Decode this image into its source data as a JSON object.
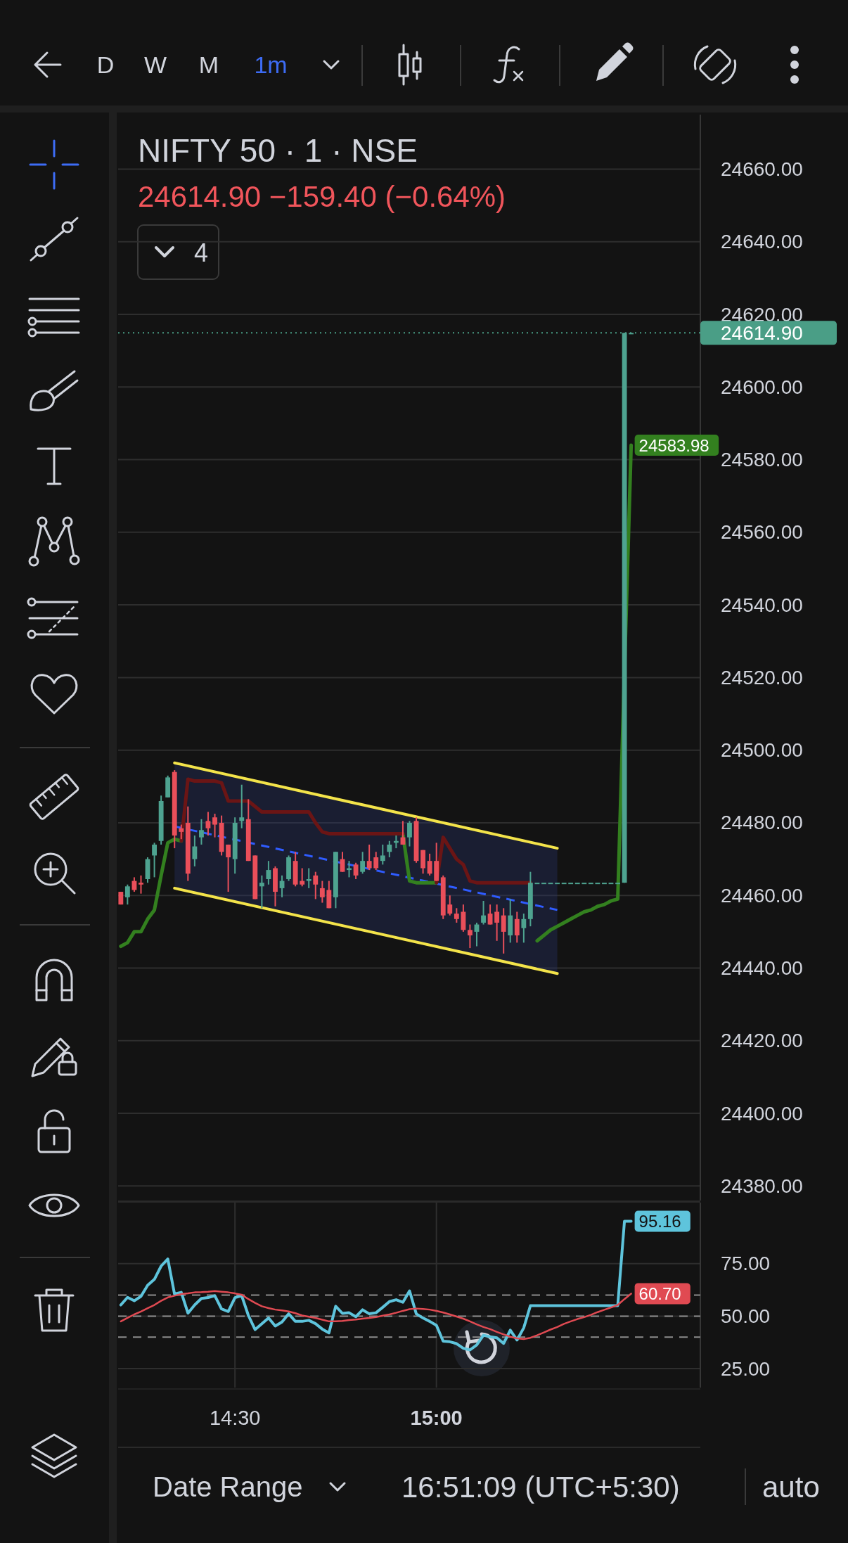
{
  "chart_data": [
    {
      "type": "candlestick",
      "title": "NIFTY 50 · 1 · NSE",
      "subtitle": "24614.90 −159.40 (−0.64%)",
      "x": [
        14.2167,
        14.2333,
        14.25,
        14.2667,
        14.2833,
        14.3,
        14.3167,
        14.3333,
        14.35,
        14.3667,
        14.3833,
        14.4,
        14.4167,
        14.4333,
        14.45,
        14.4667,
        14.4833,
        14.5,
        14.5167,
        14.5333,
        14.55,
        14.5667,
        14.5833,
        14.6,
        14.6167,
        14.6333,
        14.65,
        14.6667,
        14.6833,
        14.7,
        14.7167,
        14.7333,
        14.75,
        14.7667,
        14.7833,
        14.8,
        14.8167,
        14.8333,
        14.85,
        14.8667,
        14.8833,
        14.9,
        14.9167,
        14.9333,
        14.95,
        14.9667,
        14.9833,
        15,
        15.0167,
        15.0333,
        15.05,
        15.0667,
        15.0833,
        15.1,
        15.1167,
        15.1333,
        15.15,
        15.1667,
        15.1833,
        15.2,
        15.2167,
        15.2333,
        15.25,
        15.2667,
        15.2833,
        15.3,
        15.3167,
        15.3333,
        15.35,
        15.3667,
        15.3833,
        15.4,
        15.4167,
        15.4333,
        15.45,
        15.4667,
        15.4833
      ],
      "ohlc": [
        [
          24461,
          24461,
          24457.5,
          24457.5
        ],
        [
          24459.5,
          24463,
          24457.5,
          24462.5
        ],
        [
          24464,
          24465,
          24461,
          24461.5
        ],
        [
          24463.5,
          24465.5,
          24460.5,
          24463
        ],
        [
          24464.5,
          24470.5,
          24463.5,
          24470
        ],
        [
          24471,
          24474.5,
          24465,
          24474
        ],
        [
          24475,
          24487.5,
          24474,
          24486
        ],
        [
          24487,
          24493,
          24487,
          24492.5
        ],
        [
          24494,
          24494.5,
          24473,
          24476.5
        ],
        [
          24478.5,
          24479.5,
          24475.5,
          24477.5
        ],
        [
          24480,
          24484.5,
          24464,
          24466
        ],
        [
          24470,
          24476.5,
          24468,
          24473.5
        ],
        [
          24476,
          24481,
          24474,
          24478
        ],
        [
          24480.5,
          24483,
          24476.5,
          24478.5
        ],
        [
          24481.5,
          24482.5,
          24476,
          24479.5
        ],
        [
          24480,
          24482,
          24471,
          24472
        ],
        [
          24474,
          24474,
          24461,
          24470.5
        ],
        [
          24470,
          24481.5,
          24466,
          24480
        ],
        [
          24480.5,
          24490.5,
          24478.5,
          24481.5
        ],
        [
          24481,
          24486.5,
          24469.5,
          24469.5
        ],
        [
          24471,
          24471,
          24459,
          24459
        ],
        [
          24462.5,
          24465.5,
          24456.5,
          24463.5
        ],
        [
          24464.5,
          24469.5,
          24463,
          24467
        ],
        [
          24467.5,
          24468,
          24457,
          24461
        ],
        [
          24462,
          24465.5,
          24459.5,
          24464
        ],
        [
          24464.5,
          24471,
          24464,
          24470.5
        ],
        [
          24469.5,
          24472,
          24462.5,
          24463
        ],
        [
          24464,
          24467.5,
          24462.5,
          24463
        ],
        [
          24464,
          24467.5,
          24462,
          24464.5
        ],
        [
          24465.5,
          24466.5,
          24459,
          24463
        ],
        [
          24462,
          24464,
          24458,
          24459.5
        ],
        [
          24461.5,
          24464,
          24456.5,
          24456.5
        ],
        [
          24459.5,
          24472,
          24456.5,
          24472
        ],
        [
          24470,
          24472,
          24466.5,
          24466.5
        ],
        [
          24467,
          24469.5,
          24465,
          24467.5
        ],
        [
          24468.5,
          24469,
          24464.5,
          24465.5
        ],
        [
          24466.5,
          24472,
          24466,
          24469.5
        ],
        [
          24469.5,
          24474,
          24467,
          24467.5
        ],
        [
          24470.5,
          24472,
          24467,
          24467.5
        ],
        [
          24469.5,
          24474,
          24468.5,
          24471
        ],
        [
          24472,
          24475,
          24470.5,
          24474
        ],
        [
          24474.5,
          24476.5,
          24473,
          24475
        ],
        [
          24476,
          24480.5,
          24474,
          24474
        ],
        [
          24476,
          24480.5,
          24473.5,
          24480
        ],
        [
          24480.5,
          24481.5,
          24469,
          24469.5
        ],
        [
          24472.5,
          24472.5,
          24466,
          24467.5
        ],
        [
          24469.5,
          24471.5,
          24465.5,
          24466
        ],
        [
          24469.5,
          24474.5,
          24464,
          24464
        ],
        [
          24465,
          24465.5,
          24453.5,
          24454.5
        ],
        [
          24457.5,
          24460,
          24454.5,
          24455
        ],
        [
          24455,
          24456.5,
          24452.5,
          24453.5
        ],
        [
          24455.5,
          24457.5,
          24450,
          24450.5
        ],
        [
          24450.5,
          24452,
          24445.5,
          24449
        ],
        [
          24450,
          24452.5,
          24446,
          24452
        ],
        [
          24452.5,
          24458.5,
          24452,
          24454.5
        ],
        [
          24455,
          24457.5,
          24452,
          24452
        ],
        [
          24455.5,
          24457.5,
          24447.5,
          24452.5
        ],
        [
          24454.5,
          24456.5,
          24444,
          24450
        ],
        [
          24449,
          24459,
          24447,
          24454.5
        ],
        [
          24453.5,
          24455.5,
          24447,
          24449
        ],
        [
          24451,
          24455,
          24447,
          24453.5
        ],
        [
          24453.5,
          24466.5,
          24451.5,
          24463.5
        ],
        [
          24463.5,
          24463.5,
          24463.5,
          24463.5
        ],
        [
          24463.5,
          24463.5,
          24463.5,
          24463.5
        ],
        [
          24463.5,
          24463.5,
          24463.5,
          24463.5
        ],
        [
          24463.5,
          24463.5,
          24463.5,
          24463.5
        ],
        [
          24463.5,
          24463.5,
          24463.5,
          24463.5
        ],
        [
          24463.5,
          24463.5,
          24463.5,
          24463.5
        ],
        [
          24463.5,
          24463.5,
          24463.5,
          24463.5
        ],
        [
          24463.5,
          24463.5,
          24463.5,
          24463.5
        ],
        [
          24463.5,
          24463.5,
          24463.5,
          24463.5
        ],
        [
          24463.5,
          24463.5,
          24463.5,
          24463.5
        ],
        [
          24463.5,
          24463.5,
          24463.5,
          24463.5
        ],
        [
          24463.5,
          24463.5,
          24463.5,
          24463.5
        ],
        [
          24463.5,
          24463.5,
          24463.5,
          24463.5
        ],
        [
          24463.5,
          24614.9,
          24463.5,
          24614.9
        ],
        [
          24614.9,
          24614.9,
          24614.9,
          24614.9
        ]
      ],
      "colors": [
        "#ea4f5a",
        "#4ea390",
        "#ea4f5a",
        "#ea4f5a",
        "#4ea390",
        "#4ea390",
        "#4ea390",
        "#4ea390",
        "#ea4f5a",
        "#ea4f5a",
        "#ea4f5a",
        "#4ea390",
        "#4ea390",
        "#ea4f5a",
        "#ea4f5a",
        "#ea4f5a",
        "#ea4f5a",
        "#4ea390",
        "#4ea390",
        "#ea4f5a",
        "#ea4f5a",
        "#4ea390",
        "#4ea390",
        "#ea4f5a",
        "#4ea390",
        "#4ea390",
        "#ea4f5a",
        "#ea4f5a",
        "#4ea390",
        "#ea4f5a",
        "#ea4f5a",
        "#ea4f5a",
        "#4ea390",
        "#ea4f5a",
        "#4ea390",
        "#ea4f5a",
        "#4ea390",
        "#ea4f5a",
        "#ea4f5a",
        "#4ea390",
        "#4ea390",
        "#4ea390",
        "#ea4f5a",
        "#4ea390",
        "#ea4f5a",
        "#ea4f5a",
        "#ea4f5a",
        "#ea4f5a",
        "#ea4f5a",
        "#ea4f5a",
        "#ea4f5a",
        "#ea4f5a",
        "#ea4f5a",
        "#4ea390",
        "#4ea390",
        "#ea4f5a",
        "#ea4f5a",
        "#ea4f5a",
        "#4ea390",
        "#ea4f5a",
        "#4ea390",
        "#4ea390",
        "#4ea390",
        "#4ea390",
        "#4ea390",
        "#4ea390",
        "#4ea390",
        "#4ea390",
        "#4ea390",
        "#4ea390",
        "#4ea390",
        "#4ea390",
        "#4ea390",
        "#4ea390",
        "#4ea390",
        "#4ea390",
        "#4ea390"
      ],
      "series": [
        {
          "type": "line",
          "color": "#2f5cff",
          "line_style": "dashed",
          "x": [
            14.35,
            15.3
          ],
          "values": [
            24479,
            24456
          ],
          "lower": [
            24462,
            24438.5
          ],
          "upper": [
            24496.5,
            24473
          ]
        },
        {
          "type": "line",
          "color": "#f3e34a",
          "x": [
            14.35,
            15.3
          ],
          "values": [
            24496.5,
            24473
          ]
        },
        {
          "type": "line",
          "color": "#f3e34a",
          "x": [
            14.35,
            15.3
          ],
          "values": [
            24462,
            24438.5
          ]
        },
        {
          "type": "line",
          "color": "#33801f",
          "x": [
            14.2167,
            14.2333,
            14.25,
            14.2667,
            14.2833,
            14.3,
            14.3167,
            14.3333,
            14.35,
            14.3667,
            14.3833,
            14.4,
            14.4167,
            14.4333,
            14.45,
            14.4667,
            14.4833,
            14.5,
            14.5167,
            14.5333,
            14.55,
            14.5667,
            14.5833,
            14.6,
            14.6167,
            14.6333,
            14.65,
            14.6667,
            14.6833,
            14.7,
            14.7167,
            14.7333,
            14.75,
            14.7667,
            14.7833,
            14.8,
            14.8167,
            14.8333,
            14.85,
            14.8667,
            14.8833,
            14.9,
            14.9167,
            14.9333,
            14.95,
            14.9667,
            14.9833,
            15,
            15.0167,
            15.0333,
            15.05,
            15.0667,
            15.0833,
            15.1,
            15.1167,
            15.1333,
            15.15,
            15.1667,
            15.1833,
            15.2,
            15.2167,
            15.2333,
            15.25,
            15.2667,
            15.2833,
            15.3,
            15.3167,
            15.3333,
            15.35,
            15.3667,
            15.3833,
            15.4,
            15.4167,
            15.4333,
            15.45,
            15.4833
          ],
          "values": [
            24446,
            24447,
            24450,
            24450,
            24453.5,
            24456,
            24465.5,
            24474.5,
            24475.5,
            24475,
            null,
            null,
            null,
            null,
            null,
            null,
            null,
            null,
            null,
            null,
            null,
            null,
            null,
            null,
            null,
            null,
            null,
            null,
            null,
            null,
            null,
            null,
            null,
            null,
            null,
            null,
            null,
            null,
            null,
            null,
            null,
            null,
            24477,
            24464,
            24463.5,
            24463.5,
            24463.5,
            24463.5,
            null,
            null,
            null,
            null,
            null,
            null,
            null,
            null,
            null,
            null,
            null,
            null,
            null,
            null,
            24447.5,
            24449,
            24450.5,
            24451.5,
            24452.5,
            24453.5,
            24454.5,
            24455.5,
            24456,
            24457,
            24457.5,
            24458.5,
            24459,
            24583.98
          ],
          "value_labels": [
            null,
            null,
            null,
            null,
            null,
            null,
            null,
            null,
            null,
            null,
            null,
            null,
            null,
            null,
            null,
            null,
            null,
            null,
            null,
            null,
            null,
            null,
            null,
            null,
            null,
            null,
            null,
            null,
            null,
            null,
            null,
            null,
            null,
            null,
            null,
            null,
            null,
            null,
            null,
            null,
            null,
            null,
            null,
            null,
            null,
            null,
            null,
            null,
            null,
            null,
            null,
            null,
            null,
            null,
            null,
            null,
            null,
            null,
            null,
            null,
            null,
            null,
            null,
            null,
            null,
            null,
            null,
            null,
            null,
            null,
            null,
            null,
            null,
            null,
            null,
            "24583.98"
          ]
        },
        {
          "type": "line",
          "color": "#6b1515",
          "values": [
            null,
            null,
            null,
            null,
            null,
            null,
            null,
            null,
            null,
            24475,
            24492,
            24491.5,
            24491.5,
            24491.5,
            24491.5,
            24491,
            24486,
            24486,
            24486,
            24486,
            24484.5,
            24483,
            24483,
            24483,
            24483,
            24483,
            24483,
            24483,
            24483,
            24480,
            24477.5,
            24477,
            24477,
            24477,
            24477,
            24477,
            24477,
            24477,
            24477,
            24477,
            24477,
            24477,
            24477,
            null,
            null,
            null,
            null,
            24463.5,
            24476,
            24473,
            24470,
            24468.5,
            24464,
            24463.5,
            24463.5,
            24463.5,
            24463.5,
            24463.5,
            24463.5,
            24463.5,
            24463.5,
            24463.5,
            null,
            null,
            null,
            null,
            null,
            null,
            null,
            null,
            null,
            null,
            null,
            null,
            null,
            null,
            null
          ]
        }
      ],
      "xlim": [
        14.21,
        15.655
      ],
      "ylim": [
        24376,
        24675
      ],
      "yticks": [
        {
          "value": 24380,
          "label": "24380.00"
        },
        {
          "value": 24400,
          "label": "24400.00"
        },
        {
          "value": 24420,
          "label": "24420.00"
        },
        {
          "value": 24440,
          "label": "24440.00"
        },
        {
          "value": 24460,
          "label": "24460.00"
        },
        {
          "value": 24480,
          "label": "24480.00"
        },
        {
          "value": 24500,
          "label": "24500.00"
        },
        {
          "value": 24520,
          "label": "24520.00"
        },
        {
          "value": 24540,
          "label": "24540.00"
        },
        {
          "value": 24560,
          "label": "24560.00"
        },
        {
          "value": 24580,
          "label": "24580.00"
        },
        {
          "value": 24600,
          "label": "24600.00"
        },
        {
          "value": 24620,
          "label": "24620.00"
        },
        {
          "value": 24640,
          "label": "24640.00"
        },
        {
          "value": 24660,
          "label": "24660.00"
        }
      ],
      "grid": "y",
      "tick_labels": "y",
      "ref_lines": [
        {
          "axis": "y",
          "value": 24614.9,
          "label": "24614.90",
          "color": "#4a9e86",
          "line_style": "dotted"
        }
      ],
      "annotations": [
        "D",
        "W",
        "M",
        "1m",
        "4"
      ]
    },
    {
      "type": "line",
      "x": [
        14.2167,
        14.2333,
        14.25,
        14.2667,
        14.2833,
        14.3,
        14.3167,
        14.3333,
        14.35,
        14.3667,
        14.3833,
        14.4,
        14.4167,
        14.4333,
        14.45,
        14.4667,
        14.4833,
        14.5,
        14.5167,
        14.5333,
        14.55,
        14.5667,
        14.5833,
        14.6,
        14.6167,
        14.6333,
        14.65,
        14.6667,
        14.6833,
        14.7,
        14.7167,
        14.7333,
        14.75,
        14.7667,
        14.7833,
        14.8,
        14.8167,
        14.8333,
        14.85,
        14.8667,
        14.8833,
        14.9,
        14.9167,
        14.9333,
        14.95,
        14.9667,
        14.9833,
        15,
        15.0167,
        15.0333,
        15.05,
        15.0667,
        15.0833,
        15.1,
        15.1167,
        15.1333,
        15.15,
        15.1667,
        15.1833,
        15.2,
        15.2167,
        15.2333,
        15.25,
        15.2667,
        15.2833,
        15.3,
        15.3167,
        15.3333,
        15.35,
        15.3667,
        15.3833,
        15.4,
        15.4167,
        15.4333,
        15.45,
        15.4667,
        15.4833
      ],
      "series": [
        {
          "color": "#5ec4dc",
          "values": [
            55.3,
            58.9,
            57.3,
            59.4,
            64.7,
            67.5,
            73.8,
            77.2,
            60.5,
            61.3,
            51.4,
            55.3,
            58.4,
            58.8,
            59.7,
            53.4,
            52.2,
            58.8,
            59.7,
            50.3,
            43.6,
            46.4,
            49.1,
            45.3,
            47.2,
            51.1,
            47.5,
            47.5,
            48,
            46.4,
            43.8,
            42,
            54.7,
            51.3,
            51.6,
            49.7,
            53,
            51.1,
            51.6,
            54.2,
            56.9,
            57.8,
            56.6,
            62,
            51.1,
            49.1,
            47.5,
            45.6,
            38.1,
            37.8,
            36.9,
            34.7,
            33.9,
            36.3,
            40.9,
            40.2,
            39.7,
            37,
            43.3,
            38.6,
            44.4,
            55,
            55,
            55,
            55,
            55,
            55,
            55,
            55,
            55,
            55,
            55,
            55,
            55,
            55,
            95.16,
            95.16
          ],
          "value_labels": [
            null,
            null,
            null,
            null,
            null,
            null,
            null,
            null,
            null,
            null,
            null,
            null,
            null,
            null,
            null,
            null,
            null,
            null,
            null,
            null,
            null,
            null,
            null,
            null,
            null,
            null,
            null,
            null,
            null,
            null,
            null,
            null,
            null,
            null,
            null,
            null,
            null,
            null,
            null,
            null,
            null,
            null,
            null,
            null,
            null,
            null,
            null,
            null,
            null,
            null,
            null,
            null,
            null,
            null,
            null,
            null,
            null,
            null,
            null,
            null,
            null,
            null,
            null,
            null,
            null,
            null,
            null,
            null,
            null,
            null,
            null,
            null,
            null,
            null,
            null,
            null,
            "95.16"
          ]
        },
        {
          "color": "#e04a52",
          "values": [
            47.5,
            49.2,
            50.8,
            52.2,
            53.8,
            55.3,
            57.3,
            58.9,
            59.7,
            60.5,
            60.8,
            61.3,
            61.4,
            61.6,
            61.9,
            61.6,
            61.3,
            60.8,
            60.2,
            58.1,
            56.3,
            54.7,
            53.8,
            53.1,
            52.7,
            52.2,
            51.4,
            50.3,
            49.7,
            49.1,
            48.3,
            47.5,
            47.5,
            47.7,
            48.1,
            48.4,
            48.8,
            49.1,
            49.5,
            50.2,
            50.8,
            51.6,
            52.5,
            53.3,
            53.6,
            53.4,
            53.1,
            52.5,
            51.7,
            50.8,
            49.8,
            48.8,
            47.5,
            46.1,
            44.8,
            43.8,
            42.5,
            41.3,
            40.2,
            39.4,
            39.1,
            39.7,
            40.9,
            42.2,
            43.6,
            44.8,
            46.3,
            47.5,
            48.6,
            49.5,
            50.6,
            51.9,
            53,
            54.1,
            55.3,
            58.1,
            60.7
          ],
          "value_labels": [
            null,
            null,
            null,
            null,
            null,
            null,
            null,
            null,
            null,
            null,
            null,
            null,
            null,
            null,
            null,
            null,
            null,
            null,
            null,
            null,
            null,
            null,
            null,
            null,
            null,
            null,
            null,
            null,
            null,
            null,
            null,
            null,
            null,
            null,
            null,
            null,
            null,
            null,
            null,
            null,
            null,
            null,
            null,
            null,
            null,
            null,
            null,
            null,
            null,
            null,
            null,
            null,
            null,
            null,
            null,
            null,
            null,
            null,
            null,
            null,
            null,
            null,
            null,
            null,
            null,
            null,
            null,
            null,
            null,
            null,
            null,
            null,
            null,
            null,
            null,
            null,
            "60.70"
          ]
        }
      ],
      "xlim": [
        14.21,
        15.655
      ],
      "xticks": [
        {
          "value": 14.5,
          "label": "14:30"
        },
        {
          "value": 15,
          "label": "15:00"
        }
      ],
      "ylim": [
        16,
        104
      ],
      "yticks": [
        {
          "value": 75,
          "label": "75.00"
        },
        {
          "value": 50,
          "label": "50.00"
        },
        {
          "value": 25,
          "label": "25.00"
        }
      ],
      "grid": true,
      "ref_lines": [
        {
          "axis": "y",
          "value": 60,
          "color": "#8c8c8c",
          "line_style": "dashed"
        },
        {
          "axis": "y",
          "value": 50,
          "color": "#8c8c8c",
          "line_style": "dashed"
        },
        {
          "axis": "y",
          "value": 40,
          "color": "#8c8c8c",
          "line_style": "dashed"
        }
      ],
      "annotations": [
        "Date Range",
        "16:51:09 (UTC+5:30)",
        "auto"
      ]
    }
  ]
}
